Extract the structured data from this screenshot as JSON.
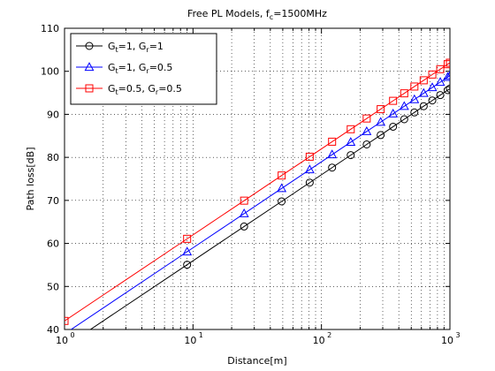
{
  "chart_data": {
    "type": "line",
    "title": {
      "base": "Free PL Models, f",
      "sub": "c",
      "tail": "=1500MHz"
    },
    "xlabel": "Distance[m]",
    "ylabel": "Path loss[dB]",
    "x_scale": "log",
    "xlim": [
      1,
      1000
    ],
    "ylim": [
      40,
      110
    ],
    "x_ticks": [
      {
        "base": "10",
        "exp": "0",
        "value": 1
      },
      {
        "base": "10",
        "exp": "1",
        "value": 10
      },
      {
        "base": "10",
        "exp": "2",
        "value": 100
      },
      {
        "base": "10",
        "exp": "3",
        "value": 1000
      }
    ],
    "y_ticks": [
      40,
      50,
      60,
      70,
      80,
      90,
      100,
      110
    ],
    "grid": true,
    "grid_style": "dotted",
    "legend_position": "top-left",
    "x": [
      1,
      9,
      25,
      49,
      81,
      121,
      169,
      225,
      289,
      361,
      441,
      529,
      625,
      729,
      841,
      961,
      1000
    ],
    "series": [
      {
        "name_parts": [
          [
            "G",
            "t",
            "=1, "
          ],
          [
            "G",
            "r",
            "=1"
          ]
        ],
        "marker": "circle",
        "color": "#000000",
        "values": [
          35.97,
          55.05,
          63.93,
          69.77,
          74.13,
          77.62,
          80.52,
          83.01,
          85.18,
          87.12,
          88.86,
          90.44,
          91.89,
          93.22,
          94.47,
          95.63,
          95.97
        ]
      },
      {
        "name_parts": [
          [
            "G",
            "t",
            "=1, "
          ],
          [
            "G",
            "r",
            "=0.5"
          ]
        ],
        "marker": "triangle",
        "color": "#0000ff",
        "values": [
          38.98,
          58.06,
          66.93,
          72.78,
          77.14,
          80.63,
          83.53,
          86.02,
          88.19,
          90.13,
          91.87,
          93.45,
          94.9,
          96.23,
          97.48,
          98.64,
          98.98
        ]
      },
      {
        "name_parts": [
          [
            "G",
            "t",
            "=0.5, "
          ],
          [
            "G",
            "r",
            "=0.5"
          ]
        ],
        "marker": "square",
        "color": "#ff0000",
        "values": [
          41.99,
          61.07,
          69.94,
          75.79,
          80.15,
          83.64,
          86.54,
          89.03,
          91.2,
          93.14,
          94.88,
          96.46,
          97.91,
          99.25,
          100.49,
          101.65,
          101.99
        ]
      }
    ]
  }
}
